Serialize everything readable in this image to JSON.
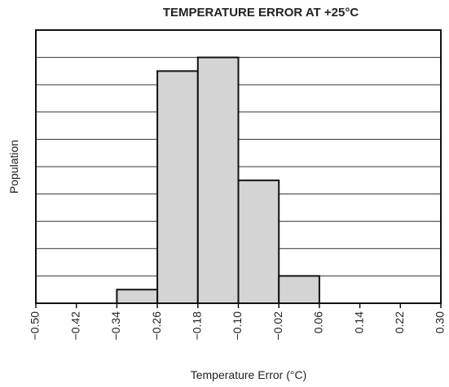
{
  "chart_data": {
    "type": "histogram",
    "title": "TEMPERATURE ERROR AT +25°C",
    "x_label": "Temperature Error (°C)",
    "y_label": "Population",
    "bins": [
      -0.34,
      -0.26,
      -0.18,
      -0.1,
      -0.02,
      0.06
    ],
    "values": [
      0.5,
      8.5,
      9.0,
      4.5,
      1.0
    ],
    "color": "#d4d4d4",
    "xlim": [
      -0.5,
      0.3
    ],
    "xticks": [
      {
        "value": -0.5,
        "label": "−0.50"
      },
      {
        "value": -0.42,
        "label": "−0.42"
      },
      {
        "value": -0.34,
        "label": "−0.34"
      },
      {
        "value": -0.26,
        "label": "−0.26"
      },
      {
        "value": -0.18,
        "label": "−0.18"
      },
      {
        "value": -0.1,
        "label": "−0.10"
      },
      {
        "value": -0.02,
        "label": "−0.02"
      },
      {
        "value": 0.06,
        "label": "0.06"
      },
      {
        "value": 0.14,
        "label": "0.14"
      },
      {
        "value": 0.22,
        "label": "0.22"
      },
      {
        "value": 0.3,
        "label": "0.30"
      }
    ],
    "ylim": [
      0,
      10
    ],
    "yticks": [
      0,
      1,
      2,
      3,
      4,
      5,
      6,
      7,
      8,
      9,
      10
    ],
    "grid": true
  }
}
